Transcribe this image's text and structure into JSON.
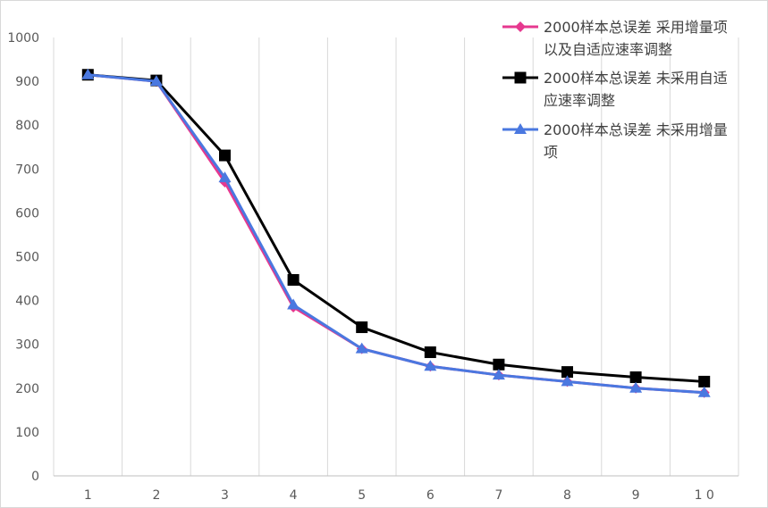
{
  "chart_data": {
    "type": "line",
    "x": [
      1,
      2,
      3,
      4,
      5,
      6,
      7,
      8,
      9,
      10
    ],
    "x_tick_labels": [
      "1",
      "2",
      "3",
      "4",
      "5",
      "6",
      "7",
      "8",
      "9",
      "1 0"
    ],
    "ylim": [
      0,
      1000
    ],
    "y_ticks": [
      0,
      100,
      200,
      300,
      400,
      500,
      600,
      700,
      800,
      900,
      1000
    ],
    "y_tick_labels": [
      "0",
      "100",
      "200",
      "300",
      "400",
      "500",
      "600",
      "700",
      "800",
      "900",
      "1000"
    ],
    "grid": "vertical",
    "legend_position": "top-right",
    "series": [
      {
        "name": "2000样本总误差 采用增量项以及自适应速率调整",
        "legend_lines": [
          "2000样本总误差 采用增量项",
          "以及自适应速率调整"
        ],
        "color": "#e6388f",
        "marker": "diamond",
        "values": [
          915,
          900,
          670,
          385,
          290,
          250,
          230,
          215,
          200,
          190
        ]
      },
      {
        "name": "2000样本总误差 未采用自适应速率调整",
        "legend_lines": [
          "2000样本总误差 未采用自适",
          "应速率调整"
        ],
        "color": "#000000",
        "marker": "square",
        "values": [
          915,
          902,
          731,
          447,
          339,
          282,
          254,
          237,
          225,
          215
        ]
      },
      {
        "name": "2000样本总误差 未采用增量项",
        "legend_lines": [
          "2000样本总误差 未采用增量",
          "项"
        ],
        "color": "#4a78e0",
        "marker": "triangle",
        "values": [
          915,
          900,
          680,
          390,
          290,
          250,
          230,
          215,
          200,
          190
        ]
      }
    ]
  }
}
